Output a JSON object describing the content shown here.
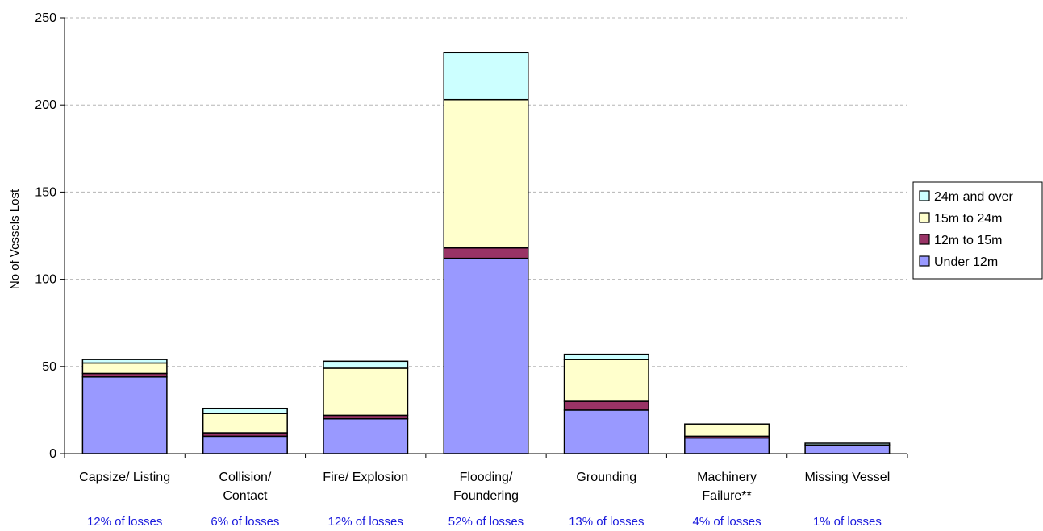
{
  "chart_data": {
    "type": "bar",
    "stacked": true,
    "title": "",
    "xlabel": "",
    "ylabel": "No of Vessels Lost",
    "ylim": [
      0,
      250
    ],
    "yticks": [
      "0",
      "50",
      "100",
      "150",
      "200",
      "250"
    ],
    "grid": "horizontal-dashed",
    "legend_position": "right",
    "categories": [
      [
        "Capsize/ Listing"
      ],
      [
        "Collision/",
        "Contact"
      ],
      [
        "Fire/ Explosion"
      ],
      [
        "Flooding/",
        "Foundering"
      ],
      [
        "Grounding"
      ],
      [
        "Machinery",
        "Failure**"
      ],
      [
        "Missing Vessel"
      ]
    ],
    "loss_shares": [
      "12% of losses",
      "6% of losses",
      "12% of losses",
      "52% of losses",
      "13% of losses",
      "4% of losses",
      "1% of losses"
    ],
    "series": [
      {
        "name": "Under 12m",
        "color": "#9999ff",
        "values": [
          44,
          10,
          20,
          112,
          25,
          9,
          5
        ]
      },
      {
        "name": "12m to 15m",
        "color": "#993366",
        "values": [
          2,
          2,
          2,
          6,
          5,
          1,
          0
        ]
      },
      {
        "name": "15m to 24m",
        "color": "#ffffcc",
        "values": [
          6,
          11,
          27,
          85,
          24,
          7,
          0
        ]
      },
      {
        "name": "24m and over",
        "color": "#ccffff",
        "values": [
          2,
          3,
          4,
          27,
          3,
          0,
          1
        ]
      }
    ],
    "legend_order": [
      "24m and over",
      "15m to 24m",
      "12m to 15m",
      "Under 12m"
    ]
  }
}
